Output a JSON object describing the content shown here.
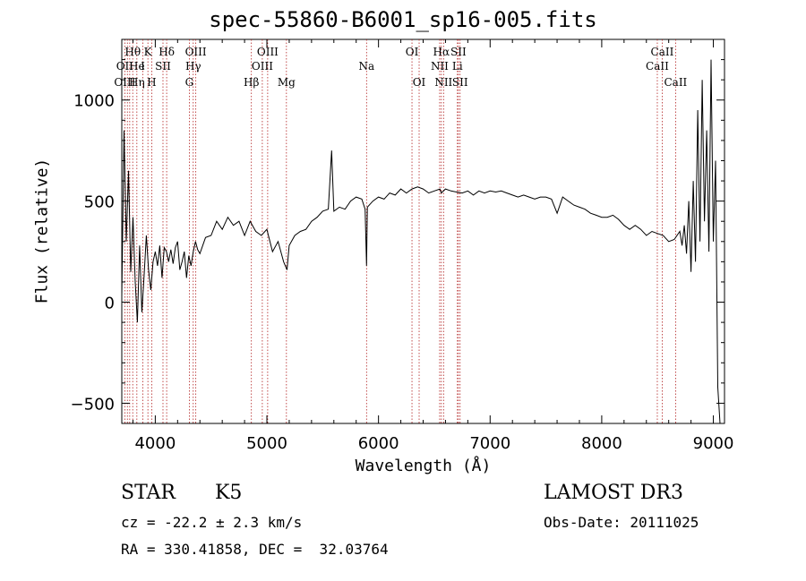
{
  "chart_data": {
    "type": "line",
    "title": "spec-55860-B6001_sp16-005.fits",
    "xlabel": "Wavelength (Å)",
    "ylabel": "Flux (relative)",
    "xlim": [
      3700,
      9100
    ],
    "ylim": [
      -600,
      1300
    ],
    "xticks": [
      4000,
      5000,
      6000,
      7000,
      8000,
      9000
    ],
    "yticks": [
      -500,
      0,
      500,
      1000
    ],
    "grid": false,
    "series": [
      {
        "x": [
          3700,
          3720,
          3740,
          3760,
          3780,
          3800,
          3820,
          3840,
          3860,
          3880,
          3900,
          3920,
          3940,
          3960,
          3980,
          4000,
          4020,
          4040,
          4060,
          4080,
          4100,
          4120,
          4140,
          4160,
          4180,
          4200,
          4220,
          4240,
          4260,
          4280,
          4300,
          4320,
          4340,
          4360,
          4380,
          4400,
          4450,
          4500,
          4550,
          4600,
          4650,
          4700,
          4750,
          4800,
          4850,
          4900,
          4950,
          5000,
          5050,
          5100,
          5150,
          5180,
          5200,
          5250,
          5300,
          5350,
          5400,
          5450,
          5500,
          5550,
          5580,
          5600,
          5650,
          5700,
          5750,
          5800,
          5850,
          5880,
          5893,
          5900,
          5950,
          6000,
          6050,
          6100,
          6150,
          6200,
          6250,
          6300,
          6350,
          6400,
          6450,
          6500,
          6550,
          6563,
          6600,
          6650,
          6700,
          6750,
          6800,
          6850,
          6900,
          6950,
          7000,
          7050,
          7100,
          7150,
          7200,
          7250,
          7300,
          7350,
          7400,
          7450,
          7500,
          7550,
          7600,
          7650,
          7700,
          7750,
          7800,
          7850,
          7900,
          7950,
          8000,
          8050,
          8100,
          8150,
          8200,
          8250,
          8300,
          8350,
          8400,
          8450,
          8500,
          8550,
          8600,
          8650,
          8700,
          8720,
          8740,
          8760,
          8780,
          8800,
          8820,
          8840,
          8860,
          8880,
          8900,
          8920,
          8940,
          8960,
          8980,
          9000,
          9020,
          9040,
          9060
        ],
        "y": [
          30,
          850,
          300,
          650,
          150,
          420,
          100,
          -100,
          280,
          -50,
          130,
          330,
          160,
          60,
          200,
          250,
          180,
          280,
          120,
          270,
          250,
          200,
          260,
          190,
          270,
          300,
          160,
          200,
          250,
          120,
          230,
          180,
          250,
          300,
          260,
          240,
          320,
          330,
          400,
          360,
          420,
          380,
          400,
          330,
          400,
          350,
          330,
          360,
          250,
          300,
          200,
          160,
          280,
          330,
          350,
          360,
          400,
          420,
          450,
          460,
          750,
          450,
          470,
          460,
          500,
          520,
          510,
          460,
          180,
          470,
          500,
          520,
          510,
          540,
          530,
          560,
          540,
          560,
          570,
          560,
          540,
          550,
          560,
          540,
          560,
          550,
          545,
          540,
          550,
          530,
          550,
          540,
          550,
          545,
          550,
          540,
          530,
          520,
          530,
          520,
          510,
          520,
          520,
          510,
          440,
          520,
          500,
          480,
          470,
          460,
          440,
          430,
          420,
          420,
          430,
          410,
          380,
          360,
          380,
          360,
          330,
          350,
          340,
          330,
          300,
          310,
          350,
          280,
          380,
          240,
          500,
          150,
          600,
          200,
          950,
          300,
          1100,
          400,
          850,
          250,
          1200,
          300,
          700,
          -420,
          -600
        ],
        "color": "#000000"
      }
    ],
    "annotations": [
      {
        "label": "Hθ",
        "wavelength": 3798,
        "row": 0
      },
      {
        "label": "OII",
        "wavelength": 3727,
        "row": 1
      },
      {
        "label": "OIII",
        "wavelength": 3727,
        "row": 2
      },
      {
        "label": "He",
        "wavelength": 3835,
        "row": 1
      },
      {
        "label": "Hη",
        "wavelength": 3835,
        "row": 2
      },
      {
        "label": "K",
        "wavelength": 3934,
        "row": 0
      },
      {
        "label": "I",
        "wavelength": 3889,
        "row": 1
      },
      {
        "label": "SII",
        "wavelength": 4069,
        "row": 1
      },
      {
        "label": "H",
        "wavelength": 3968,
        "row": 2
      },
      {
        "label": "Hδ",
        "wavelength": 4102,
        "row": 0
      },
      {
        "label": "OIII",
        "wavelength": 4363,
        "row": 0
      },
      {
        "label": "Hγ",
        "wavelength": 4340,
        "row": 1
      },
      {
        "label": "G",
        "wavelength": 4305,
        "row": 2
      },
      {
        "label": "OIII",
        "wavelength": 5007,
        "row": 0
      },
      {
        "label": "OIII",
        "wavelength": 4959,
        "row": 1
      },
      {
        "label": "Hβ",
        "wavelength": 4861,
        "row": 2
      },
      {
        "label": "Mg",
        "wavelength": 5175,
        "row": 2
      },
      {
        "label": "Na",
        "wavelength": 5893,
        "row": 1
      },
      {
        "label": "OI",
        "wavelength": 6300,
        "row": 0
      },
      {
        "label": "OI",
        "wavelength": 6364,
        "row": 2
      },
      {
        "label": "Hα",
        "wavelength": 6563,
        "row": 0
      },
      {
        "label": "SII",
        "wavelength": 6716,
        "row": 0
      },
      {
        "label": "NII",
        "wavelength": 6548,
        "row": 1
      },
      {
        "label": "Li",
        "wavelength": 6707,
        "row": 1
      },
      {
        "label": "NII",
        "wavelength": 6583,
        "row": 2
      },
      {
        "label": "SII",
        "wavelength": 6731,
        "row": 2
      },
      {
        "label": "CaII",
        "wavelength": 8542,
        "row": 0
      },
      {
        "label": "CaII",
        "wavelength": 8498,
        "row": 1
      },
      {
        "label": "CaII",
        "wavelength": 8662,
        "row": 2
      }
    ],
    "line_wavelengths": [
      3727,
      3750,
      3771,
      3798,
      3835,
      3889,
      3934,
      3968,
      4069,
      4102,
      4305,
      4340,
      4363,
      4861,
      4959,
      5007,
      5175,
      5893,
      6300,
      6364,
      6548,
      6563,
      6583,
      6707,
      6716,
      6731,
      8498,
      8542,
      8662
    ]
  },
  "info": {
    "object_class": "STAR",
    "subclass": "K5",
    "redshift": "cz = -22.2 ± 2.3 km/s",
    "coords": "RA = 330.41858, DEC =  32.03764",
    "survey": "LAMOST DR3",
    "obs_date": "Obs-Date: 20111025"
  }
}
